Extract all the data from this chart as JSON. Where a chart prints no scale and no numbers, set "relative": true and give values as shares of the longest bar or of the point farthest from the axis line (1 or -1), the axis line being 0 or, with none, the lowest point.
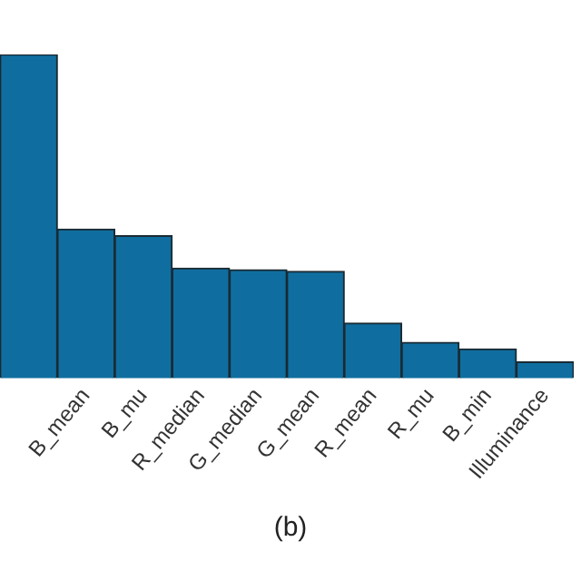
{
  "chart_data": {
    "type": "bar",
    "relative": true,
    "categories": [
      null,
      "B_mean",
      "B_mu",
      "R_median",
      "G_median",
      "G_mean",
      "R_mean",
      "R_mu",
      "B_min",
      "Illuminance"
    ],
    "values": [
      1,
      0.46,
      0.44,
      0.34,
      0.335,
      0.33,
      0.17,
      0.11,
      0.09,
      0.05
    ],
    "color": "#0f6e9f",
    "grid": false,
    "legend": false,
    "annotations": [
      "(b)"
    ]
  }
}
